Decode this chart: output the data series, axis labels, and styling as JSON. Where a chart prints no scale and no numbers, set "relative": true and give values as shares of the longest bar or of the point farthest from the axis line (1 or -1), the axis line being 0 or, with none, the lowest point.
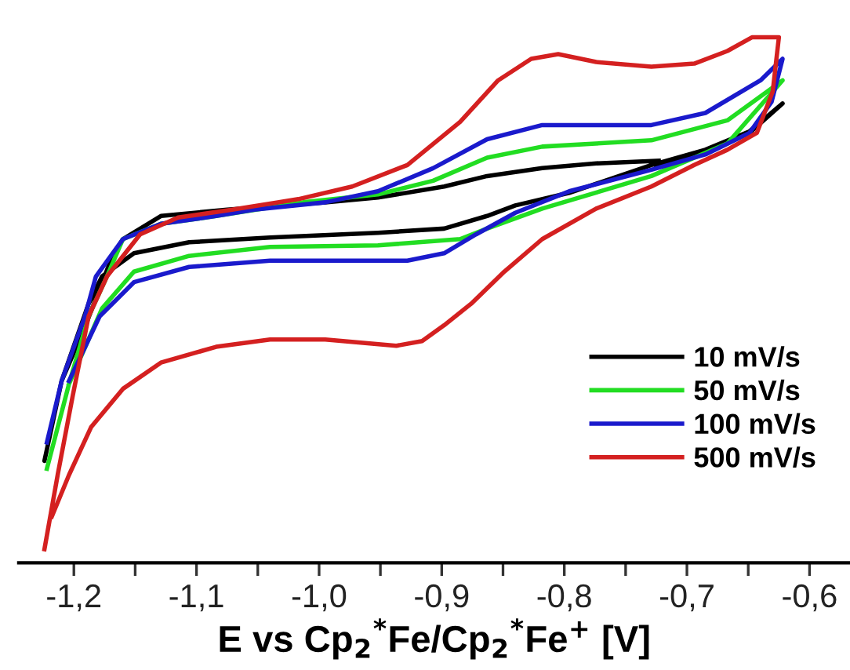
{
  "chart_data": {
    "type": "line",
    "relative": true,
    "xlabel": "E vs Cp$_{2}$$^{*}$Fe/Cp$_{2}$$^{*}$Fe$^{+}$ [V]",
    "xlim": [
      -1.245,
      -0.567
    ],
    "xticks": [
      {
        "value": -1.2,
        "label": "-1,2"
      },
      {
        "value": -1.15,
        "label": null
      },
      {
        "value": -1.1,
        "label": "-1,1"
      },
      {
        "value": -1.05,
        "label": null
      },
      {
        "value": -1.0,
        "label": "-1,0"
      },
      {
        "value": -0.95,
        "label": null
      },
      {
        "value": -0.9,
        "label": "-0,9"
      },
      {
        "value": -0.85,
        "label": null
      },
      {
        "value": -0.8,
        "label": "-0,8"
      },
      {
        "value": -0.75,
        "label": null
      },
      {
        "value": -0.7,
        "label": "-0,7"
      },
      {
        "value": -0.65,
        "label": null
      },
      {
        "value": -0.6,
        "label": "-0,6"
      }
    ],
    "tick_labels": "x",
    "legend": "lower right",
    "grid": false,
    "line_style": "solid",
    "marker": "none",
    "series": [
      {
        "name": "10 mV/s",
        "color": "#000000",
        "x": [
          -0.725,
          -0.685,
          -0.649,
          -0.622,
          -0.649,
          -0.685,
          -0.729,
          -0.796,
          -0.84,
          -0.863,
          -0.898,
          -0.952,
          -1.04,
          -1.106,
          -1.151,
          -1.177,
          -1.188,
          -1.21,
          -1.224,
          -1.21,
          -1.191,
          -1.169,
          -1.16,
          -1.129,
          -1.075,
          -0.995,
          -0.952,
          -0.898,
          -0.863,
          -0.818,
          -0.774,
          -0.723
        ],
        "values": [
          0.754,
          0.786,
          0.818,
          0.874,
          0.821,
          0.786,
          0.757,
          0.704,
          0.68,
          0.66,
          0.636,
          0.628,
          0.619,
          0.61,
          0.589,
          0.545,
          0.493,
          0.346,
          0.194,
          0.346,
          0.449,
          0.581,
          0.616,
          0.66,
          0.672,
          0.686,
          0.695,
          0.716,
          0.736,
          0.751,
          0.76,
          0.765
        ]
      },
      {
        "name": "50 mV/s",
        "color": "#22dd22",
        "x": [
          -1.222,
          -1.204,
          -1.188,
          -1.173,
          -1.16,
          -1.129,
          -1.084,
          -1.013,
          -0.952,
          -0.907,
          -0.863,
          -0.818,
          -0.729,
          -0.667,
          -0.622,
          -0.667,
          -0.729,
          -0.818,
          -0.863,
          -0.885,
          -0.952,
          -1.04,
          -1.106,
          -1.151,
          -1.177,
          -1.204
        ],
        "values": [
          0.179,
          0.34,
          0.469,
          0.545,
          0.616,
          0.645,
          0.66,
          0.686,
          0.701,
          0.727,
          0.771,
          0.792,
          0.804,
          0.842,
          0.918,
          0.798,
          0.736,
          0.674,
          0.636,
          0.616,
          0.604,
          0.601,
          0.584,
          0.554,
          0.484,
          0.34
        ]
      },
      {
        "name": "100 mV/s",
        "color": "#1a1acc",
        "x": [
          -1.222,
          -1.21,
          -1.191,
          -1.182,
          -1.16,
          -1.129,
          -1.084,
          -1.053,
          -0.995,
          -0.952,
          -0.907,
          -0.863,
          -0.818,
          -0.729,
          -0.685,
          -0.64,
          -0.622,
          -0.631,
          -0.649,
          -0.685,
          -0.729,
          -0.796,
          -0.84,
          -0.872,
          -0.898,
          -0.928,
          -1.04,
          -1.106,
          -1.151,
          -1.179,
          -1.204
        ],
        "values": [
          0.229,
          0.346,
          0.469,
          0.545,
          0.616,
          0.645,
          0.66,
          0.672,
          0.686,
          0.707,
          0.751,
          0.806,
          0.833,
          0.833,
          0.856,
          0.918,
          0.959,
          0.877,
          0.818,
          0.777,
          0.748,
          0.707,
          0.666,
          0.625,
          0.589,
          0.575,
          0.575,
          0.563,
          0.534,
          0.469,
          0.346
        ]
      },
      {
        "name": "500 mV/s",
        "color": "#d42020",
        "x": [
          -1.224,
          -1.213,
          -1.201,
          -1.188,
          -1.173,
          -1.146,
          -1.115,
          -1.071,
          -1.017,
          -0.973,
          -0.928,
          -0.885,
          -0.854,
          -0.827,
          -0.805,
          -0.774,
          -0.729,
          -0.694,
          -0.667,
          -0.647,
          -0.625,
          -0.63,
          -0.643,
          -0.667,
          -0.694,
          -0.729,
          -0.774,
          -0.818,
          -0.849,
          -0.876,
          -0.898,
          -0.916,
          -0.937,
          -0.995,
          -1.04,
          -1.084,
          -1.129,
          -1.16,
          -1.186,
          -1.204,
          -1.218
        ],
        "values": [
          0.026,
          0.17,
          0.317,
          0.469,
          0.545,
          0.625,
          0.657,
          0.672,
          0.692,
          0.716,
          0.757,
          0.839,
          0.918,
          0.959,
          0.968,
          0.953,
          0.944,
          0.95,
          0.974,
          1.0,
          1.0,
          0.897,
          0.818,
          0.786,
          0.757,
          0.716,
          0.674,
          0.616,
          0.554,
          0.493,
          0.452,
          0.422,
          0.413,
          0.425,
          0.425,
          0.411,
          0.381,
          0.331,
          0.258,
          0.167,
          0.088
        ]
      }
    ]
  }
}
